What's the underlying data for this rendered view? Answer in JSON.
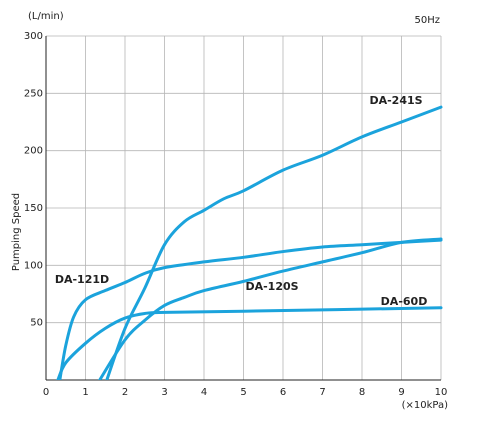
{
  "chart_data": {
    "type": "line",
    "y_unit": "(L/min)",
    "note": "50Hz",
    "x_unit": "(×10kPa)",
    "y_label": "Pumping Speed",
    "xlim": [
      0,
      10
    ],
    "xticks": [
      0,
      1,
      2,
      3,
      4,
      5,
      6,
      7,
      8,
      9,
      10
    ],
    "ylim": [
      0,
      300
    ],
    "yticks": [
      50,
      100,
      150,
      200,
      250,
      300
    ],
    "grid": true,
    "series": [
      {
        "name": "DA-241S",
        "color": "#1ba3dc",
        "x": [
          1.54,
          2,
          2.5,
          3,
          3.5,
          4,
          4.5,
          5,
          6,
          7,
          8,
          9,
          10
        ],
        "values": [
          0,
          45,
          80,
          118,
          138,
          148,
          158,
          165,
          183,
          196,
          212,
          225,
          238
        ]
      },
      {
        "name": "DA-121D",
        "color": "#1ba3dc",
        "x": [
          0.35,
          0.5,
          0.7,
          1,
          1.5,
          2,
          2.5,
          3,
          4,
          5,
          6,
          7,
          8,
          9,
          10
        ],
        "values": [
          0,
          30,
          55,
          70,
          78,
          85,
          93,
          98,
          103,
          107,
          112,
          116,
          118,
          120,
          122
        ]
      },
      {
        "name": "DA-120S",
        "color": "#1ba3dc",
        "x": [
          1.36,
          2,
          2.5,
          3,
          3.5,
          4,
          5,
          6,
          7,
          8,
          9,
          10
        ],
        "values": [
          0,
          35,
          52,
          65,
          72,
          78,
          86,
          95,
          103,
          111,
          120,
          123
        ]
      },
      {
        "name": "DA-60D",
        "color": "#1ba3dc",
        "x": [
          0.3,
          0.5,
          1,
          1.5,
          2,
          2.5,
          3,
          5,
          10
        ],
        "values": [
          0,
          15,
          32,
          45,
          54,
          58,
          59,
          60,
          63
        ]
      }
    ]
  }
}
